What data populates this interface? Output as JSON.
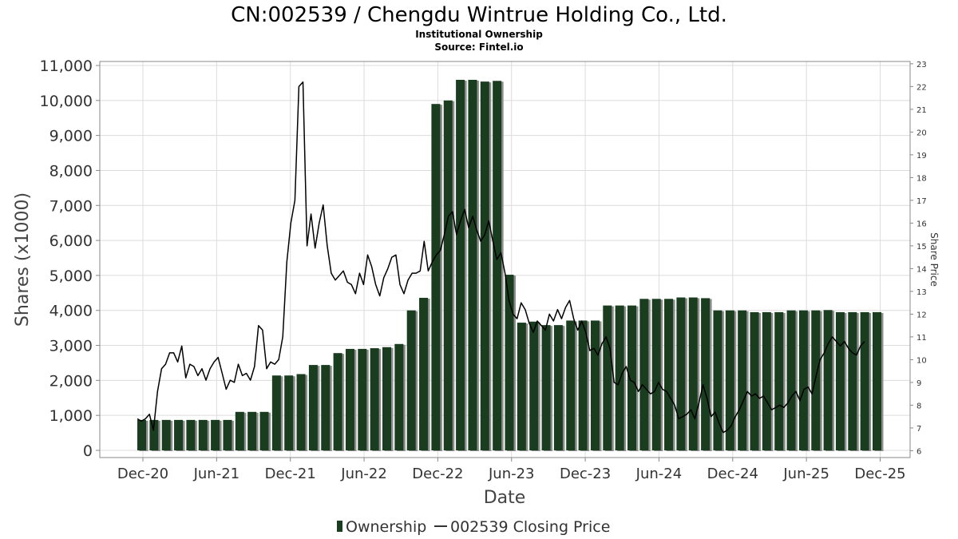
{
  "chart_data": {
    "type": "bar",
    "title": "CN:002539 / Chengdu Wintrue Holding Co., Ltd.",
    "subtitle": "Institutional Ownership",
    "source": "Source: Fintel.io",
    "xlabel": "Date",
    "ylabel": "Shares (x1000)",
    "y2label": "Share Price",
    "ylim": [
      0,
      11000
    ],
    "y2lim": [
      5.7,
      23.1
    ],
    "yticks": [
      "0",
      "1,000",
      "2,000",
      "3,000",
      "4,000",
      "5,000",
      "6,000",
      "7,000",
      "8,000",
      "9,000",
      "10,000",
      "11,000"
    ],
    "y2ticks": [
      "6",
      "7",
      "8",
      "9",
      "10",
      "11",
      "12",
      "13",
      "14",
      "15",
      "16",
      "17",
      "18",
      "19",
      "20",
      "21",
      "22",
      "23"
    ],
    "xticks": [
      "Dec-20",
      "Jun-21",
      "Dec-21",
      "Jun-22",
      "Dec-22",
      "Jun-23",
      "Dec-23",
      "Jun-24",
      "Dec-24",
      "Jun-25",
      "Dec-25"
    ],
    "series": [
      {
        "name": "Ownership",
        "type": "bar",
        "color": "#1a3d1f",
        "values": [
          870,
          870,
          870,
          870,
          870,
          870,
          870,
          870,
          1100,
          1100,
          1100,
          2140,
          2140,
          2180,
          2440,
          2440,
          2780,
          2900,
          2900,
          2920,
          2950,
          3040,
          4000,
          4360,
          9900,
          10000,
          10590,
          10590,
          10540,
          10560,
          5020,
          3650,
          3680,
          3580,
          3580,
          3710,
          3710,
          3710,
          4140,
          4140,
          4140,
          4330,
          4330,
          4330,
          4370,
          4370,
          4350,
          4000,
          4000,
          4000,
          3950,
          3950,
          3950,
          4000,
          4000,
          4000,
          4010,
          3950,
          3950,
          3950,
          3950
        ]
      },
      {
        "name": "002539 Closing Price",
        "type": "line",
        "color": "#000000",
        "values": [
          7.4,
          7.3,
          7.4,
          7.6,
          6.9,
          8.6,
          9.6,
          9.8,
          10.3,
          10.3,
          9.9,
          10.6,
          9.2,
          9.8,
          9.7,
          9.3,
          9.6,
          9.1,
          9.6,
          9.9,
          10.1,
          9.4,
          8.7,
          9.1,
          9.0,
          9.8,
          9.3,
          9.4,
          9.1,
          9.7,
          11.5,
          11.3,
          9.6,
          9.9,
          9.8,
          10.0,
          11.0,
          14.3,
          16.0,
          17.0,
          22.0,
          22.2,
          15.0,
          16.4,
          14.9,
          16.0,
          16.8,
          15.0,
          13.8,
          13.5,
          13.7,
          13.9,
          13.4,
          13.3,
          12.9,
          13.8,
          13.3,
          14.6,
          14.1,
          13.3,
          12.8,
          13.6,
          14.0,
          14.5,
          14.6,
          13.3,
          12.9,
          13.5,
          13.8,
          13.8,
          13.9,
          15.2,
          13.9,
          14.3,
          14.6,
          14.8,
          15.5,
          16.3,
          16.5,
          15.5,
          16.1,
          16.6,
          15.8,
          16.3,
          15.7,
          15.2,
          15.5,
          16.1,
          15.2,
          14.4,
          14.7,
          13.8,
          12.6,
          12.0,
          11.8,
          12.5,
          12.2,
          11.6,
          11.2,
          11.7,
          11.5,
          11.3,
          12.0,
          11.7,
          12.2,
          11.8,
          12.3,
          12.6,
          11.8,
          11.3,
          11.7,
          11.2,
          10.4,
          10.5,
          10.2,
          10.7,
          11.0,
          10.5,
          9.0,
          8.9,
          9.4,
          9.7,
          9.1,
          9.0,
          8.6,
          8.9,
          8.7,
          8.5,
          8.6,
          9.0,
          8.7,
          8.6,
          8.3,
          8.0,
          7.4,
          7.5,
          7.6,
          7.8,
          7.4,
          8.1,
          8.9,
          8.3,
          7.5,
          7.7,
          7.2,
          6.8,
          6.9,
          7.1,
          7.5,
          7.8,
          8.2,
          8.6,
          8.4,
          8.5,
          8.3,
          8.4,
          8.1,
          7.8,
          7.9,
          8.0,
          7.9,
          8.1,
          8.4,
          8.6,
          8.2,
          8.7,
          8.8,
          8.5,
          9.3,
          10.0,
          10.3,
          10.7,
          11.0,
          10.8,
          10.6,
          10.8,
          10.5,
          10.3,
          10.2,
          10.6,
          10.8
        ]
      }
    ],
    "legend": [
      "Ownership",
      "002539 Closing Price"
    ],
    "legend_position": "bottom-center"
  }
}
